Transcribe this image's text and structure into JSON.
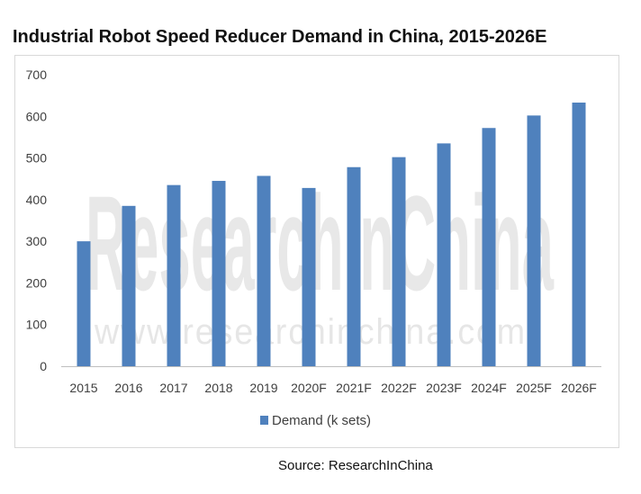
{
  "page": {
    "title": "Industrial Robot Speed Reducer Demand in China, 2015-2026E",
    "source": "Source: ResearchInChina"
  },
  "watermark": {
    "brand": "ResearchInChina",
    "url": "www.researchinchina.com"
  },
  "chart_data": {
    "type": "bar",
    "title": "Industrial Robot Speed Reducer Demand in China, 2015-2026E",
    "xlabel": "",
    "ylabel": "",
    "categories": [
      "2015",
      "2016",
      "2017",
      "2018",
      "2019",
      "2020F",
      "2021F",
      "2022F",
      "2023F",
      "2024F",
      "2025F",
      "2026F"
    ],
    "series": [
      {
        "name": "Demand (k sets)",
        "color": "#4f81bd",
        "values": [
          300,
          385,
          435,
          445,
          457,
          428,
          478,
          502,
          535,
          572,
          602,
          633
        ]
      }
    ],
    "ylim": [
      0,
      700
    ],
    "yticks": [
      0,
      100,
      200,
      300,
      400,
      500,
      600,
      700
    ],
    "grid": false,
    "legend": "bottom"
  }
}
